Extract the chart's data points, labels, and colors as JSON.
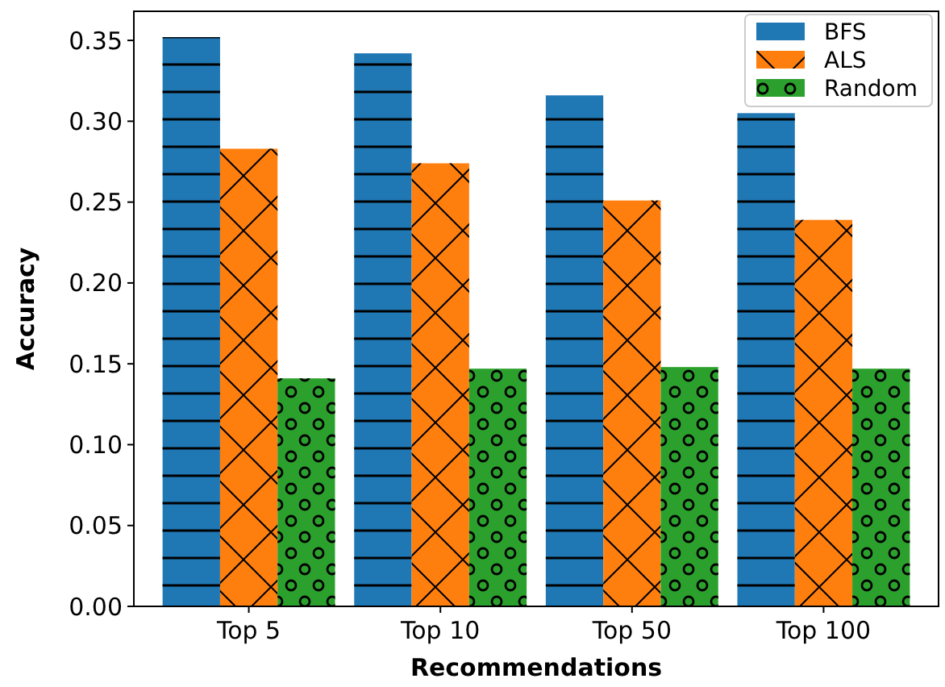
{
  "chart_data": {
    "type": "bar",
    "xlabel": "Recommendations",
    "ylabel": "Accuracy",
    "categories": [
      "Top 5",
      "Top 10",
      "Top 50",
      "Top 100"
    ],
    "series": [
      {
        "name": "BFS",
        "color": "#1f77b4",
        "values": [
          0.352,
          0.342,
          0.316,
          0.305
        ]
      },
      {
        "name": "ALS",
        "color": "#ff7f0e",
        "values": [
          0.283,
          0.274,
          0.251,
          0.239
        ]
      },
      {
        "name": "Random",
        "color": "#2ca02c",
        "values": [
          0.141,
          0.147,
          0.148,
          0.147
        ]
      }
    ],
    "ylim": [
      0,
      0.368
    ],
    "yticks": [
      {
        "value": 0,
        "label": "0.00"
      },
      {
        "value": 0.05,
        "label": "0.05"
      },
      {
        "value": 0.1,
        "label": "0.10"
      },
      {
        "value": 0.15,
        "label": "0.15"
      },
      {
        "value": 0.2,
        "label": "0.20"
      },
      {
        "value": 0.25,
        "label": "0.25"
      },
      {
        "value": 0.3,
        "label": "0.30"
      },
      {
        "value": 0.35,
        "label": "0.35"
      }
    ],
    "grid": false,
    "legend": "top right"
  }
}
